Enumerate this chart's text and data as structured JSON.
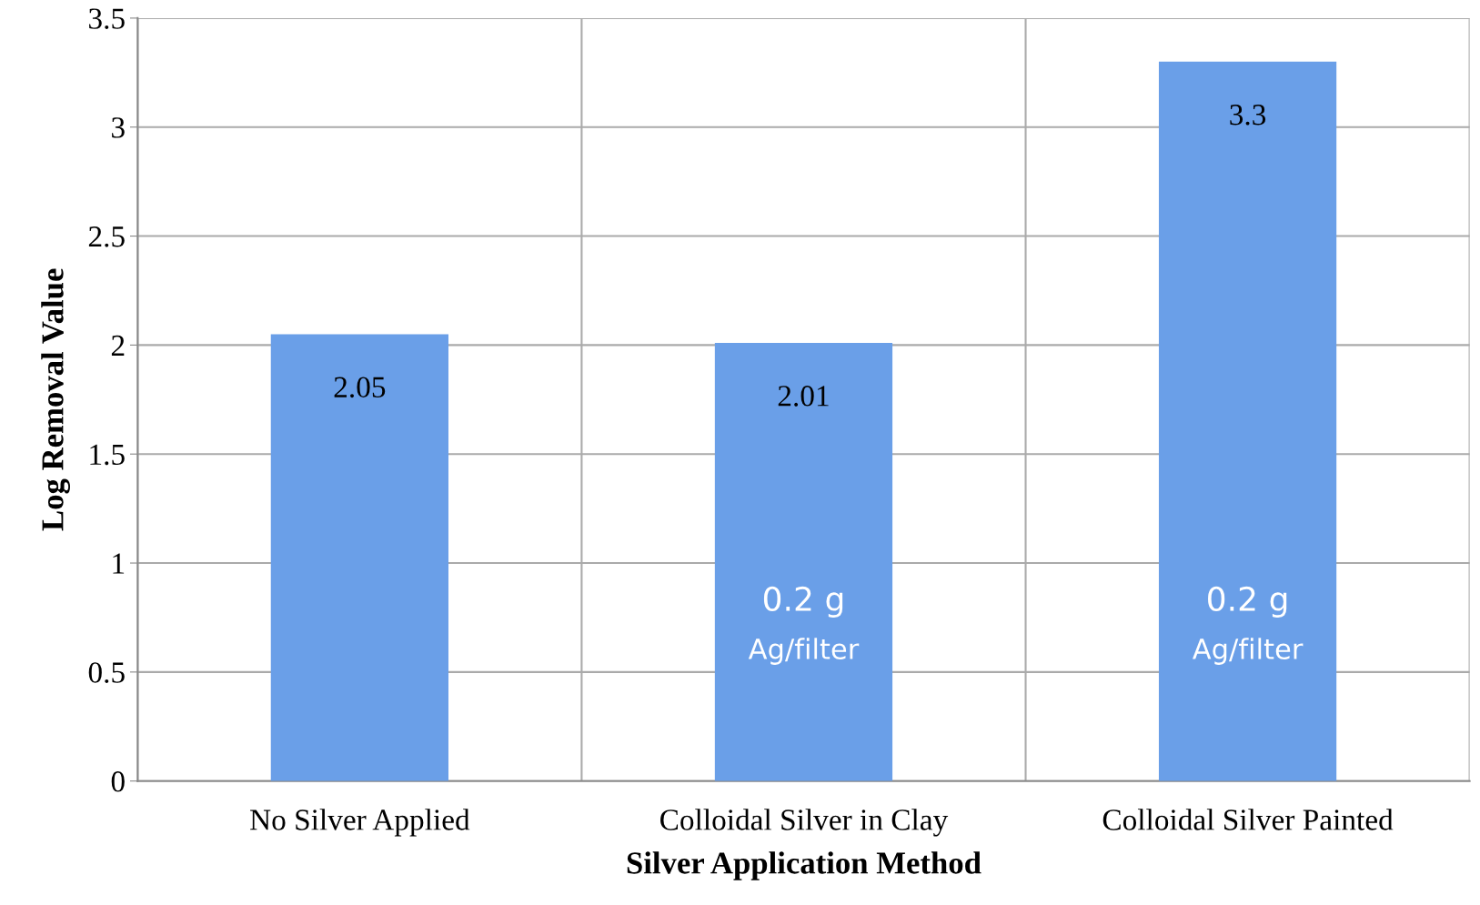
{
  "chart_data": {
    "type": "bar",
    "xlabel": "Silver Application Method",
    "ylabel": "Log Removal Value",
    "categories": [
      "No Silver Applied",
      "Colloidal Silver in Clay",
      "Colloidal Silver Painted"
    ],
    "values": [
      2.05,
      2.01,
      3.3
    ],
    "color": "#6a9fe8",
    "ylim": [
      0,
      3.5
    ],
    "yticks": [
      0,
      0.5,
      1,
      1.5,
      2,
      2.5,
      3,
      3.5
    ],
    "grid": true,
    "data_labels": true,
    "annotations": [
      "0.2 g",
      "Ag/filter",
      "0.2 g",
      "Ag/filter"
    ]
  }
}
